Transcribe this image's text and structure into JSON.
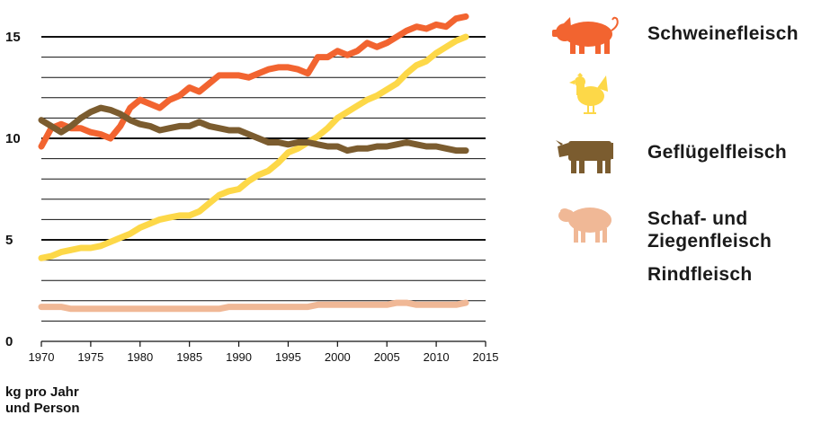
{
  "chart_data": {
    "type": "line",
    "x": [
      1970,
      1971,
      1972,
      1973,
      1974,
      1975,
      1976,
      1977,
      1978,
      1979,
      1980,
      1981,
      1982,
      1983,
      1984,
      1985,
      1986,
      1987,
      1988,
      1989,
      1990,
      1991,
      1992,
      1993,
      1994,
      1995,
      1996,
      1997,
      1998,
      1999,
      2000,
      2001,
      2002,
      2003,
      2004,
      2005,
      2006,
      2007,
      2008,
      2009,
      2010,
      2011,
      2012,
      2013
    ],
    "xticks": [
      "1970",
      "1975",
      "1980",
      "1985",
      "1990",
      "1995",
      "2000",
      "2005",
      "2010",
      "2015"
    ],
    "yticks": [
      "0",
      "5",
      "10",
      "15"
    ],
    "xlim": [
      1970,
      2015
    ],
    "ylim": [
      0,
      15.6
    ],
    "unit_label": [
      "kg pro Jahr",
      "und Person"
    ],
    "grid": "horizontal lines every 1 kg, bold every 5 kg",
    "legend_position": "right",
    "series": [
      {
        "name": "Schweinefleisch",
        "color": "#f26430",
        "icon": "pig-icon",
        "values": [
          9.6,
          10.5,
          10.7,
          10.5,
          10.5,
          10.3,
          10.2,
          10.0,
          10.6,
          11.5,
          11.9,
          11.7,
          11.5,
          11.9,
          12.1,
          12.5,
          12.3,
          12.7,
          13.1,
          13.1,
          13.1,
          13.0,
          13.2,
          13.4,
          13.5,
          13.5,
          13.4,
          13.2,
          14.0,
          14.0,
          14.3,
          14.1,
          14.3,
          14.7,
          14.5,
          14.7,
          15.0,
          15.3,
          15.5,
          15.4,
          15.6,
          15.5,
          15.9,
          16.0
        ]
      },
      {
        "name": "Geflügelfleisch",
        "color": "#fdd848",
        "icon": "chicken-icon",
        "values": [
          4.1,
          4.2,
          4.4,
          4.5,
          4.6,
          4.6,
          4.7,
          4.9,
          5.1,
          5.3,
          5.6,
          5.8,
          6.0,
          6.1,
          6.2,
          6.2,
          6.4,
          6.8,
          7.2,
          7.4,
          7.5,
          7.9,
          8.2,
          8.4,
          8.8,
          9.3,
          9.5,
          9.8,
          10.1,
          10.5,
          11.0,
          11.3,
          11.6,
          11.9,
          12.1,
          12.4,
          12.7,
          13.2,
          13.6,
          13.8,
          14.2,
          14.5,
          14.8,
          15.0
        ]
      },
      {
        "name": "Rindfleisch",
        "color": "#7b5c2f",
        "icon": "cow-icon",
        "values": [
          10.9,
          10.6,
          10.3,
          10.6,
          11.0,
          11.3,
          11.5,
          11.4,
          11.2,
          10.9,
          10.7,
          10.6,
          10.4,
          10.5,
          10.6,
          10.6,
          10.8,
          10.6,
          10.5,
          10.4,
          10.4,
          10.2,
          10.0,
          9.8,
          9.8,
          9.7,
          9.8,
          9.8,
          9.7,
          9.6,
          9.6,
          9.4,
          9.5,
          9.5,
          9.6,
          9.6,
          9.7,
          9.8,
          9.7,
          9.6,
          9.6,
          9.5,
          9.4,
          9.4
        ]
      },
      {
        "name": "Schaf- und Ziegenfleisch",
        "legend_lines": [
          "Schaf- und",
          "Ziegenfleisch"
        ],
        "color": "#f0b896",
        "icon": "sheep-icon",
        "values": [
          1.7,
          1.7,
          1.7,
          1.6,
          1.6,
          1.6,
          1.6,
          1.6,
          1.6,
          1.6,
          1.6,
          1.6,
          1.6,
          1.6,
          1.6,
          1.6,
          1.6,
          1.6,
          1.6,
          1.7,
          1.7,
          1.7,
          1.7,
          1.7,
          1.7,
          1.7,
          1.7,
          1.7,
          1.8,
          1.8,
          1.8,
          1.8,
          1.8,
          1.8,
          1.8,
          1.8,
          1.9,
          1.9,
          1.8,
          1.8,
          1.8,
          1.8,
          1.8,
          1.9
        ]
      }
    ]
  }
}
